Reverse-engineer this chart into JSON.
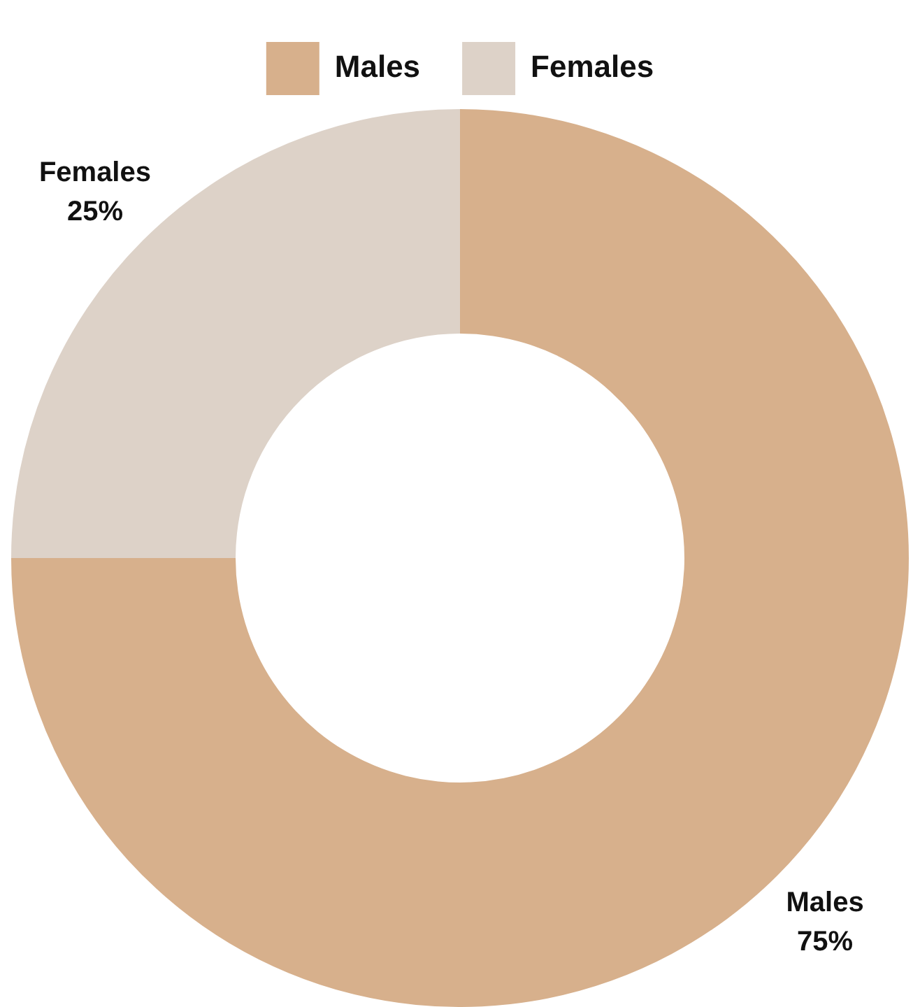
{
  "chart_data": {
    "type": "donut",
    "categories": [
      "Males",
      "Females"
    ],
    "values": [
      75,
      25
    ],
    "colors": [
      "#d7b08c",
      "#ddd2c8"
    ],
    "value_labels": [
      "75%",
      "25%"
    ],
    "legend": "top"
  }
}
